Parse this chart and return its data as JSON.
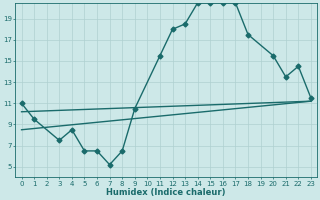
{
  "title": "",
  "xlabel": "Humidex (Indice chaleur)",
  "ylabel": "",
  "xlim": [
    -0.5,
    23.5
  ],
  "ylim": [
    4,
    20.5
  ],
  "yticks": [
    5,
    7,
    9,
    11,
    13,
    15,
    17,
    19
  ],
  "xticks": [
    0,
    1,
    2,
    3,
    4,
    5,
    6,
    7,
    8,
    9,
    10,
    11,
    12,
    13,
    14,
    15,
    16,
    17,
    18,
    19,
    20,
    21,
    22,
    23
  ],
  "bg_color": "#cde8e8",
  "line_color": "#1a6b6b",
  "grid_color": "#afd0d0",
  "line1_x": [
    0,
    1,
    3,
    4,
    5,
    6,
    7,
    8,
    9,
    11,
    12,
    13,
    14,
    15,
    16,
    17,
    18,
    20,
    21,
    22,
    23
  ],
  "line1_y": [
    11,
    9.5,
    7.5,
    8.5,
    6.5,
    6.5,
    5.2,
    6.5,
    10.5,
    15.5,
    18.0,
    18.5,
    20.5,
    20.5,
    20.5,
    20.5,
    17.5,
    15.5,
    13.5,
    14.5,
    11.5
  ],
  "line2_x": [
    0,
    23
  ],
  "line2_y": [
    10.2,
    11.2
  ],
  "line3_x": [
    0,
    23
  ],
  "line3_y": [
    8.5,
    11.2
  ],
  "marker": "D",
  "markersize": 2.5,
  "linewidth": 1.0
}
